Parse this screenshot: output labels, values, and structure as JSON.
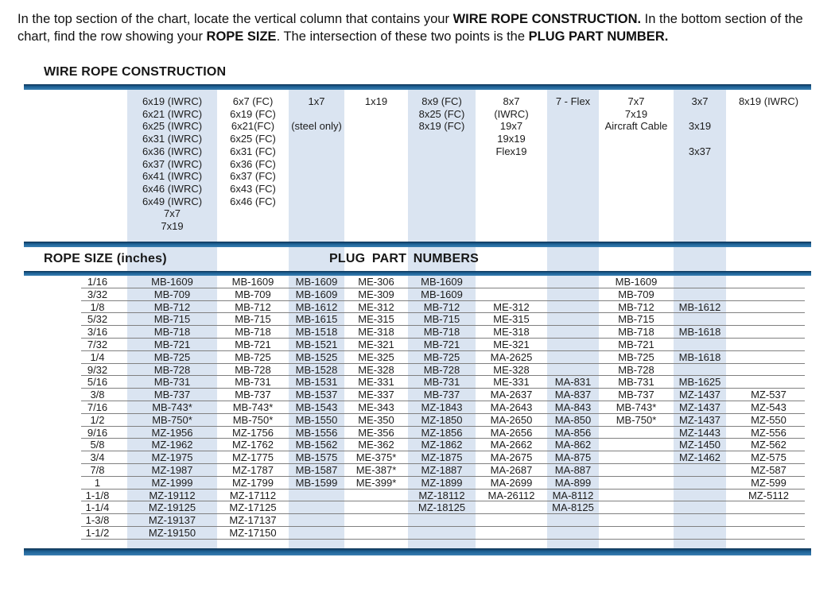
{
  "intro": {
    "part1": "In the top section of the chart, locate the vertical column that contains your ",
    "part2": "WIRE ROPE CONSTRUCTION.",
    "part3": "  In the bottom section of the chart, find the row showing your ",
    "part4": "ROPE SIZE",
    "part5": ".  The intersection of these two points is the ",
    "part6": "PLUG PART NUMBER."
  },
  "section_title": "WIRE ROPE CONSTRUCTION",
  "table_headers": {
    "rope_size": "ROPE SIZE (inches)",
    "plug_part": "PLUG PART NUMBERS"
  },
  "colors": {
    "bar_blue": "#1e6296",
    "bar_blue_dark": "#0d3354",
    "bar_blue_light": "#3a7fb2",
    "band_blue": "#dae4f1",
    "row_line": "#808080",
    "text": "#1f1f1f"
  },
  "construction_columns": [
    {
      "shaded": true,
      "lines": [
        "6x19 (IWRC)",
        "6x21 (IWRC)",
        "6x25 (IWRC)",
        "6x31 (IWRC)",
        "6x36 (IWRC)",
        "6x37 (IWRC)",
        "6x41 (IWRC)",
        "6x46 (IWRC)",
        "6x49 (IWRC)",
        "7x7",
        "7x19"
      ]
    },
    {
      "shaded": false,
      "lines": [
        "6x7 (FC)",
        "6x19 (FC)",
        "6x21(FC)",
        "6x25 (FC)",
        "6x31 (FC)",
        "6x36 (FC)",
        "6x37 (FC)",
        "6x43 (FC)",
        "6x46 (FC)"
      ]
    },
    {
      "shaded": true,
      "lines": [
        "1x7",
        "",
        "(steel only)"
      ]
    },
    {
      "shaded": false,
      "lines": [
        "1x19"
      ]
    },
    {
      "shaded": true,
      "lines": [
        "8x9 (FC)",
        "8x25 (FC)",
        "8x19 (FC)"
      ]
    },
    {
      "shaded": false,
      "lines": [
        "8x7",
        "(IWRC)",
        "19x7",
        "19x19",
        "Flex19"
      ]
    },
    {
      "shaded": true,
      "lines": [
        "7 - Flex"
      ]
    },
    {
      "shaded": false,
      "lines": [
        "7x7",
        "7x19",
        "Aircraft Cable"
      ]
    },
    {
      "shaded": true,
      "lines": [
        "3x7",
        "",
        "3x19",
        "",
        "3x37"
      ]
    },
    {
      "shaded": false,
      "lines": [
        "8x19 (IWRC)"
      ]
    }
  ],
  "rows": [
    {
      "size": "1/16",
      "cells": [
        "MB-1609",
        "MB-1609",
        "MB-1609",
        "ME-306",
        "MB-1609",
        "",
        "",
        "MB-1609",
        "",
        ""
      ]
    },
    {
      "size": "3/32",
      "cells": [
        "MB-709",
        "MB-709",
        "MB-1609",
        "ME-309",
        "MB-1609",
        "",
        "",
        "MB-709",
        "",
        ""
      ]
    },
    {
      "size": "1/8",
      "cells": [
        "MB-712",
        "MB-712",
        "MB-1612",
        "ME-312",
        "MB-712",
        "ME-312",
        "",
        "MB-712",
        "MB-1612",
        ""
      ]
    },
    {
      "size": "5/32",
      "cells": [
        "MB-715",
        "MB-715",
        "MB-1615",
        "ME-315",
        "MB-715",
        "ME-315",
        "",
        "MB-715",
        "",
        ""
      ]
    },
    {
      "size": "3/16",
      "cells": [
        "MB-718",
        "MB-718",
        "MB-1518",
        "ME-318",
        "MB-718",
        "ME-318",
        "",
        "MB-718",
        "MB-1618",
        ""
      ]
    },
    {
      "size": "7/32",
      "cells": [
        "MB-721",
        "MB-721",
        "MB-1521",
        "ME-321",
        "MB-721",
        "ME-321",
        "",
        "MB-721",
        "",
        ""
      ]
    },
    {
      "size": "1/4",
      "cells": [
        "MB-725",
        "MB-725",
        "MB-1525",
        "ME-325",
        "MB-725",
        "MA-2625",
        "",
        "MB-725",
        "MB-1618",
        ""
      ]
    },
    {
      "size": "9/32",
      "cells": [
        "MB-728",
        "MB-728",
        "MB-1528",
        "ME-328",
        "MB-728",
        "ME-328",
        "",
        "MB-728",
        "",
        ""
      ]
    },
    {
      "size": "5/16",
      "cells": [
        "MB-731",
        "MB-731",
        "MB-1531",
        "ME-331",
        "MB-731",
        "ME-331",
        "MA-831",
        "MB-731",
        "MB-1625",
        ""
      ]
    },
    {
      "size": "3/8",
      "cells": [
        "MB-737",
        "MB-737",
        "MB-1537",
        "ME-337",
        "MB-737",
        "MA-2637",
        "MA-837",
        "MB-737",
        "MZ-1437",
        "MZ-537"
      ]
    },
    {
      "size": "7/16",
      "cells": [
        "MB-743*",
        "MB-743*",
        "MB-1543",
        "ME-343",
        "MZ-1843",
        "MA-2643",
        "MA-843",
        "MB-743*",
        "MZ-1437",
        "MZ-543"
      ]
    },
    {
      "size": "1/2",
      "cells": [
        "MB-750*",
        "MB-750*",
        "MB-1550",
        "ME-350",
        "MZ-1850",
        "MA-2650",
        "MA-850",
        "MB-750*",
        "MZ-1437",
        "MZ-550"
      ]
    },
    {
      "size": "9/16",
      "cells": [
        "MZ-1956",
        "MZ-1756",
        "MB-1556",
        "ME-356",
        "MZ-1856",
        "MA-2656",
        "MA-856",
        "",
        "MZ-1443",
        "MZ-556"
      ]
    },
    {
      "size": "5/8",
      "cells": [
        "MZ-1962",
        "MZ-1762",
        "MB-1562",
        "ME-362",
        "MZ-1862",
        "MA-2662",
        "MA-862",
        "",
        "MZ-1450",
        "MZ-562"
      ]
    },
    {
      "size": "3/4",
      "cells": [
        "MZ-1975",
        "MZ-1775",
        "MB-1575",
        "ME-375*",
        "MZ-1875",
        "MA-2675",
        "MA-875",
        "",
        "MZ-1462",
        "MZ-575"
      ]
    },
    {
      "size": "7/8",
      "cells": [
        "MZ-1987",
        "MZ-1787",
        "MB-1587",
        "ME-387*",
        "MZ-1887",
        "MA-2687",
        "MA-887",
        "",
        "",
        "MZ-587"
      ]
    },
    {
      "size": "1",
      "cells": [
        "MZ-1999",
        "MZ-1799",
        "MB-1599",
        "ME-399*",
        "MZ-1899",
        "MA-2699",
        "MA-899",
        "",
        "",
        "MZ-599"
      ]
    },
    {
      "size": "1-1/8",
      "cells": [
        "MZ-19112",
        "MZ-17112",
        "",
        "",
        "MZ-18112",
        "MA-26112",
        "MA-8112",
        "",
        "",
        "MZ-5112"
      ]
    },
    {
      "size": "1-1/4",
      "cells": [
        "MZ-19125",
        "MZ-17125",
        "",
        "",
        "MZ-18125",
        "",
        "MA-8125",
        "",
        "",
        ""
      ]
    },
    {
      "size": "1-3/8",
      "cells": [
        "MZ-19137",
        "MZ-17137",
        "",
        "",
        "",
        "",
        "",
        "",
        "",
        ""
      ]
    },
    {
      "size": "1-1/2",
      "cells": [
        "MZ-19150",
        "MZ-17150",
        "",
        "",
        "",
        "",
        "",
        "",
        "",
        ""
      ]
    }
  ]
}
